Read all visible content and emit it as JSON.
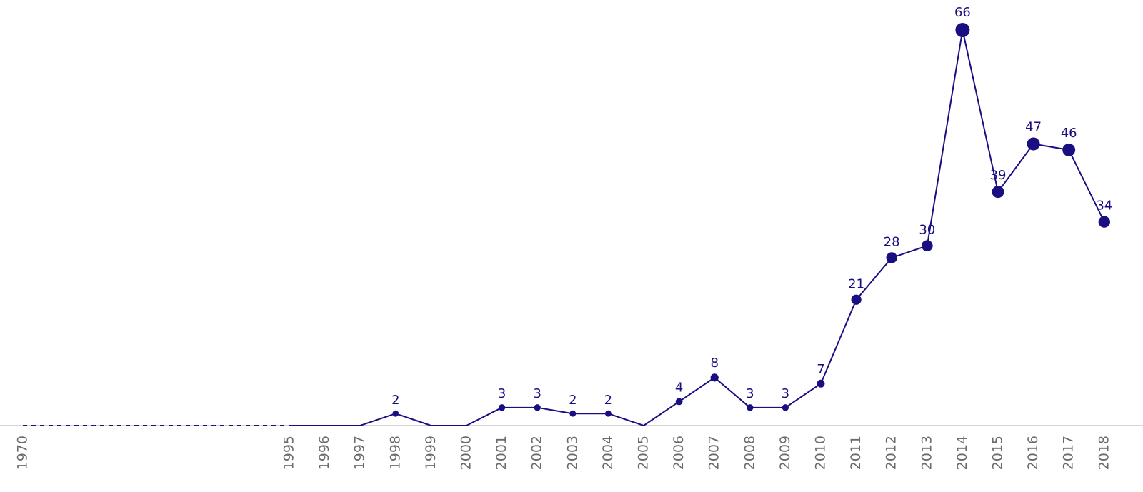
{
  "chart_data": {
    "type": "line",
    "title": "",
    "xlabel": "",
    "ylabel": "",
    "x": [
      "1995",
      "1996",
      "1997",
      "1998",
      "1999",
      "2000",
      "2001",
      "2002",
      "2003",
      "2004",
      "2005",
      "2006",
      "2007",
      "2008",
      "2009",
      "2010",
      "2011",
      "2012",
      "2013",
      "2014",
      "2015",
      "2016",
      "2017",
      "2018"
    ],
    "values": [
      0,
      0,
      0,
      2,
      0,
      0,
      3,
      3,
      2,
      2,
      0,
      4,
      8,
      3,
      3,
      7,
      21,
      28,
      30,
      66,
      39,
      47,
      46,
      34
    ],
    "data_labels": [
      "",
      "",
      "",
      "2",
      "",
      "",
      "3",
      "3",
      "2",
      "2",
      "",
      "4",
      "8",
      "3",
      "3",
      "7",
      "21",
      "28",
      "30",
      "66",
      "39",
      "47",
      "46",
      "34"
    ],
    "gap_start": "1970",
    "gap_end": "1995",
    "x_ticks": [
      "1970",
      "1995",
      "1996",
      "1997",
      "1998",
      "1999",
      "2000",
      "2001",
      "2002",
      "2003",
      "2004",
      "2005",
      "2006",
      "2007",
      "2008",
      "2009",
      "2010",
      "2011",
      "2012",
      "2013",
      "2014",
      "2015",
      "2016",
      "2017",
      "2018"
    ],
    "ylim": [
      0,
      66
    ],
    "grid": false,
    "colors": {
      "line": "#1a0f80",
      "baseline": "#c8c8c8",
      "tick_text": "#6b6b6b",
      "label_text": "#1a0f80"
    }
  }
}
